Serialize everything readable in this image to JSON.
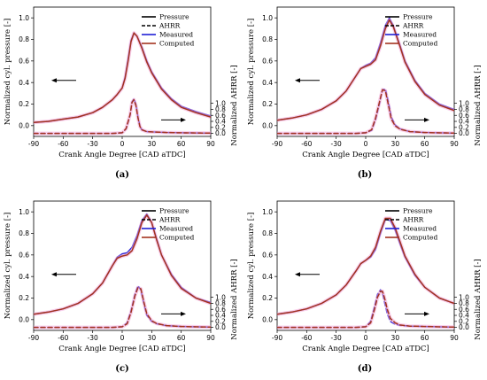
{
  "colors": {
    "pressure": "#000000",
    "ahrr": "#000000",
    "measured": "#1f1fd6",
    "computed": "#a3331f",
    "band": "#f2a6d8"
  },
  "chart_data": [
    {
      "type": "line",
      "caption": "(a)",
      "xlabel": "Crank Angle Degree [CAD aTDC]",
      "ylabel": "Normalized cyl. pressure [-]",
      "ylabel_right": "Normalized AHRR [-]",
      "xlim": [
        -90,
        90
      ],
      "ylim": [
        -0.1,
        1.1
      ],
      "ylim_right": [
        -0.1,
        4.2
      ],
      "xticks": [
        "-90",
        "-60",
        "-30",
        "0",
        "30",
        "60",
        "90"
      ],
      "yticks": [
        "0.0",
        "0.2",
        "0.4",
        "0.6",
        "0.8",
        "1.0"
      ],
      "yticks_right": [
        "0.0",
        "0.2",
        "0.4",
        "0.6",
        "0.8",
        "1.0"
      ],
      "legend": [
        "Pressure",
        "AHRR",
        "Measured",
        "Computed"
      ],
      "legend_position": "top-right",
      "grid": false,
      "series": [
        {
          "name": "Measured",
          "kind": "pressure",
          "x": [
            -90,
            -75,
            -60,
            -45,
            -30,
            -20,
            -10,
            -5,
            0,
            3,
            6,
            9,
            12,
            15,
            20,
            25,
            30,
            40,
            50,
            60,
            75,
            90
          ],
          "y": [
            0.03,
            0.04,
            0.06,
            0.08,
            0.12,
            0.17,
            0.24,
            0.29,
            0.35,
            0.45,
            0.62,
            0.79,
            0.86,
            0.83,
            0.73,
            0.6,
            0.5,
            0.35,
            0.25,
            0.18,
            0.13,
            0.09
          ]
        },
        {
          "name": "Computed",
          "kind": "pressure",
          "x": [
            -90,
            -75,
            -60,
            -45,
            -30,
            -20,
            -10,
            -5,
            0,
            3,
            6,
            9,
            12,
            15,
            20,
            25,
            30,
            40,
            50,
            60,
            75,
            90
          ],
          "y": [
            0.03,
            0.04,
            0.06,
            0.08,
            0.12,
            0.17,
            0.24,
            0.29,
            0.35,
            0.44,
            0.6,
            0.78,
            0.86,
            0.83,
            0.72,
            0.59,
            0.49,
            0.34,
            0.24,
            0.17,
            0.12,
            0.08
          ]
        },
        {
          "name": "Measured",
          "kind": "ahrr",
          "x": [
            -90,
            -30,
            -10,
            0,
            4,
            8,
            10,
            12,
            14,
            16,
            18,
            20,
            25,
            30,
            45,
            60,
            90
          ],
          "y": [
            0.0,
            0.0,
            0.0,
            0.02,
            0.15,
            0.6,
            1.05,
            1.15,
            0.95,
            0.55,
            0.25,
            0.12,
            0.06,
            0.05,
            0.03,
            0.02,
            0.01
          ]
        },
        {
          "name": "Computed",
          "kind": "ahrr",
          "x": [
            -90,
            -30,
            -10,
            0,
            4,
            8,
            10,
            12,
            14,
            16,
            18,
            20,
            25,
            30,
            45,
            60,
            90
          ],
          "y": [
            0.0,
            0.0,
            0.0,
            0.02,
            0.16,
            0.62,
            1.03,
            1.12,
            0.92,
            0.52,
            0.23,
            0.12,
            0.06,
            0.05,
            0.03,
            0.02,
            0.01
          ]
        }
      ]
    },
    {
      "type": "line",
      "caption": "(b)",
      "xlabel": "Crank Angle Degree [CAD aTDC]",
      "ylabel": "Normalized cyl. pressure [-]",
      "ylabel_right": "Normalized AHRR [-]",
      "xlim": [
        -90,
        90
      ],
      "ylim": [
        -0.1,
        1.1
      ],
      "ylim_right": [
        -0.1,
        4.2
      ],
      "xticks": [
        "-90",
        "-60",
        "-30",
        "0",
        "30",
        "60",
        "90"
      ],
      "yticks": [
        "0.0",
        "0.2",
        "0.4",
        "0.6",
        "0.8",
        "1.0"
      ],
      "yticks_right": [
        "0.0",
        "0.2",
        "0.4",
        "0.6",
        "0.8",
        "1.0"
      ],
      "legend": [
        "Pressure",
        "AHRR",
        "Measured",
        "Computed"
      ],
      "legend_position": "top-right",
      "grid": false,
      "series": [
        {
          "name": "Measured",
          "kind": "pressure",
          "x": [
            -90,
            -75,
            -60,
            -45,
            -30,
            -20,
            -10,
            -5,
            0,
            5,
            10,
            15,
            20,
            24,
            28,
            35,
            40,
            50,
            60,
            75,
            90
          ],
          "y": [
            0.05,
            0.07,
            0.1,
            0.15,
            0.23,
            0.32,
            0.46,
            0.53,
            0.56,
            0.58,
            0.63,
            0.77,
            0.93,
            1.0,
            0.93,
            0.74,
            0.6,
            0.42,
            0.3,
            0.2,
            0.15
          ]
        },
        {
          "name": "Computed",
          "kind": "pressure",
          "x": [
            -90,
            -75,
            -60,
            -45,
            -30,
            -20,
            -10,
            -5,
            0,
            5,
            10,
            15,
            20,
            24,
            28,
            35,
            40,
            50,
            60,
            75,
            90
          ],
          "y": [
            0.05,
            0.07,
            0.1,
            0.15,
            0.23,
            0.32,
            0.46,
            0.53,
            0.55,
            0.57,
            0.61,
            0.74,
            0.9,
            0.98,
            0.92,
            0.73,
            0.59,
            0.41,
            0.29,
            0.19,
            0.14
          ]
        },
        {
          "name": "Measured",
          "kind": "ahrr",
          "x": [
            -90,
            -30,
            -10,
            0,
            6,
            10,
            14,
            17,
            20,
            23,
            26,
            30,
            35,
            45,
            60,
            90
          ],
          "y": [
            0.0,
            0.0,
            0.0,
            0.02,
            0.1,
            0.45,
            1.0,
            1.45,
            1.48,
            1.05,
            0.55,
            0.28,
            0.15,
            0.06,
            0.03,
            0.01
          ]
        },
        {
          "name": "Computed",
          "kind": "ahrr",
          "x": [
            -90,
            -30,
            -10,
            0,
            6,
            10,
            14,
            17,
            20,
            23,
            26,
            30,
            35,
            45,
            60,
            90
          ],
          "y": [
            0.0,
            0.0,
            0.0,
            0.02,
            0.12,
            0.5,
            1.05,
            1.45,
            1.42,
            0.95,
            0.48,
            0.25,
            0.14,
            0.06,
            0.03,
            0.01
          ]
        }
      ]
    },
    {
      "type": "line",
      "caption": "(c)",
      "xlabel": "Crank Angle Degree [CAD aTDC]",
      "ylabel": "Normalized cyl. pressure [-]",
      "ylabel_right": "Normalized AHRR [-]",
      "xlim": [
        -90,
        90
      ],
      "ylim": [
        -0.1,
        1.1
      ],
      "ylim_right": [
        -0.1,
        4.2
      ],
      "xticks": [
        "-90",
        "-60",
        "-30",
        "0",
        "30",
        "60",
        "90"
      ],
      "yticks": [
        "0.0",
        "0.2",
        "0.4",
        "0.6",
        "0.8",
        "1.0"
      ],
      "yticks_right": [
        "0.0",
        "0.2",
        "0.4",
        "0.6",
        "0.8",
        "1.0"
      ],
      "legend": [
        "Pressure",
        "AHRR",
        "Measured",
        "Computed"
      ],
      "legend_position": "top-right",
      "grid": false,
      "series": [
        {
          "name": "Measured",
          "kind": "pressure",
          "x": [
            -90,
            -75,
            -60,
            -45,
            -30,
            -20,
            -10,
            -5,
            0,
            5,
            10,
            15,
            20,
            25,
            30,
            35,
            40,
            50,
            60,
            75,
            90
          ],
          "y": [
            0.05,
            0.07,
            0.1,
            0.15,
            0.24,
            0.34,
            0.5,
            0.58,
            0.61,
            0.62,
            0.67,
            0.78,
            0.92,
            0.98,
            0.9,
            0.75,
            0.6,
            0.42,
            0.3,
            0.2,
            0.16
          ]
        },
        {
          "name": "Computed",
          "kind": "pressure",
          "x": [
            -90,
            -75,
            -60,
            -45,
            -30,
            -20,
            -10,
            -5,
            0,
            5,
            10,
            15,
            20,
            25,
            30,
            35,
            40,
            50,
            60,
            75,
            90
          ],
          "y": [
            0.05,
            0.07,
            0.1,
            0.15,
            0.24,
            0.34,
            0.5,
            0.57,
            0.59,
            0.6,
            0.64,
            0.75,
            0.9,
            0.97,
            0.9,
            0.74,
            0.6,
            0.41,
            0.29,
            0.2,
            0.15
          ]
        },
        {
          "name": "Measured",
          "kind": "ahrr",
          "x": [
            -90,
            -30,
            -10,
            0,
            5,
            9,
            13,
            16,
            19,
            22,
            25,
            30,
            35,
            45,
            60,
            90
          ],
          "y": [
            0.0,
            0.0,
            0.0,
            0.02,
            0.15,
            0.55,
            1.1,
            1.38,
            1.25,
            0.8,
            0.4,
            0.2,
            0.12,
            0.06,
            0.03,
            0.01
          ]
        },
        {
          "name": "Computed",
          "kind": "ahrr",
          "x": [
            -90,
            -30,
            -10,
            0,
            5,
            9,
            13,
            16,
            19,
            22,
            25,
            30,
            35,
            45,
            60,
            90
          ],
          "y": [
            0.0,
            0.0,
            0.0,
            0.02,
            0.12,
            0.5,
            1.05,
            1.32,
            1.28,
            0.85,
            0.45,
            0.22,
            0.13,
            0.06,
            0.03,
            0.01
          ]
        }
      ]
    },
    {
      "type": "line",
      "caption": "(d)",
      "xlabel": "Crank Angle Degree [CAD aTDC]",
      "ylabel": "Normalized cyl. pressure [-]",
      "ylabel_right": "Normalized AHRR [-]",
      "xlim": [
        -90,
        90
      ],
      "ylim": [
        -0.1,
        1.1
      ],
      "ylim_right": [
        -0.1,
        4.2
      ],
      "xticks": [
        "-90",
        "-60",
        "-30",
        "0",
        "30",
        "60",
        "90"
      ],
      "yticks": [
        "0.0",
        "0.2",
        "0.4",
        "0.6",
        "0.8",
        "1.0"
      ],
      "yticks_right": [
        "0.0",
        "0.2",
        "0.4",
        "0.6",
        "0.8",
        "1.0"
      ],
      "legend": [
        "Pressure",
        "AHRR",
        "Measured",
        "Computed"
      ],
      "legend_position": "top-right",
      "grid": false,
      "series": [
        {
          "name": "Measured",
          "kind": "pressure",
          "x": [
            -90,
            -75,
            -60,
            -45,
            -30,
            -20,
            -10,
            -5,
            0,
            5,
            10,
            15,
            20,
            25,
            30,
            35,
            40,
            50,
            60,
            75,
            90
          ],
          "y": [
            0.05,
            0.07,
            0.1,
            0.15,
            0.23,
            0.32,
            0.45,
            0.52,
            0.55,
            0.58,
            0.65,
            0.8,
            0.93,
            0.92,
            0.83,
            0.7,
            0.58,
            0.41,
            0.3,
            0.2,
            0.15
          ]
        },
        {
          "name": "Computed",
          "kind": "pressure",
          "x": [
            -90,
            -75,
            -60,
            -45,
            -30,
            -20,
            -10,
            -5,
            0,
            5,
            10,
            15,
            20,
            25,
            30,
            35,
            40,
            50,
            60,
            75,
            90
          ],
          "y": [
            0.05,
            0.07,
            0.1,
            0.15,
            0.23,
            0.32,
            0.45,
            0.52,
            0.55,
            0.59,
            0.67,
            0.82,
            0.94,
            0.94,
            0.85,
            0.72,
            0.59,
            0.42,
            0.3,
            0.2,
            0.15
          ]
        },
        {
          "name": "Measured",
          "kind": "ahrr",
          "x": [
            -90,
            -30,
            -10,
            0,
            5,
            9,
            12,
            15,
            17,
            19,
            22,
            25,
            30,
            35,
            45,
            60,
            90
          ],
          "y": [
            0.0,
            0.0,
            0.0,
            0.02,
            0.2,
            0.7,
            1.1,
            1.25,
            1.15,
            0.85,
            0.45,
            0.2,
            0.1,
            0.07,
            0.04,
            0.03,
            0.01
          ]
        },
        {
          "name": "Computed",
          "kind": "ahrr",
          "x": [
            -90,
            -30,
            -10,
            0,
            5,
            9,
            12,
            15,
            17,
            19,
            22,
            25,
            30,
            35,
            45,
            60,
            90
          ],
          "y": [
            0.0,
            0.0,
            0.0,
            0.02,
            0.15,
            0.6,
            1.0,
            1.2,
            1.2,
            1.0,
            0.6,
            0.3,
            0.15,
            0.08,
            0.04,
            0.03,
            0.01
          ]
        }
      ]
    }
  ]
}
